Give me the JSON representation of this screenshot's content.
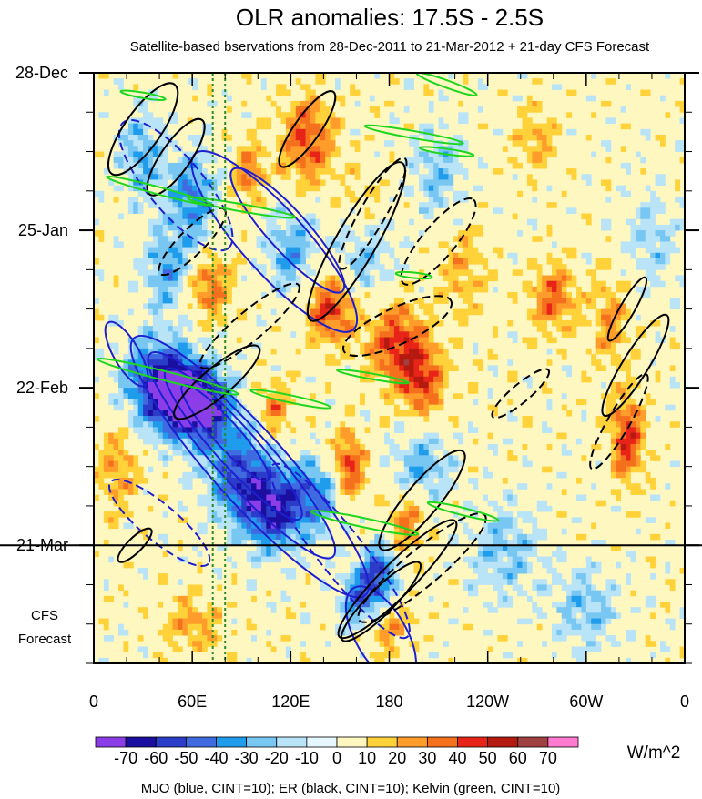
{
  "chart_data": {
    "type": "heatmap",
    "title": "OLR anomalies: 17.5S - 2.5S",
    "subtitle": "Satellite-based bservations from 28-Dec-2011 to 21-Mar-2012 + 21-day CFS Forecast",
    "x_ticks": [
      "0",
      "60E",
      "120E",
      "180",
      "120W",
      "60W",
      "0"
    ],
    "x_tick_values": [
      0,
      60,
      120,
      180,
      240,
      300,
      360
    ],
    "y_ticks": [
      "28-Dec",
      "25-Jan",
      "22-Feb",
      "21-Mar"
    ],
    "y_tick_values": [
      0,
      28,
      56,
      84
    ],
    "xlim": [
      0,
      360
    ],
    "ylim_days": [
      0,
      105
    ],
    "observation_end_day": 84,
    "forecast_label_line1": "CFS",
    "forecast_label_line2": "Forecast",
    "colorbar": {
      "levels": [
        "-70",
        "-60",
        "-50",
        "-40",
        "-30",
        "-20",
        "-10",
        "0",
        "10",
        "20",
        "30",
        "40",
        "50",
        "60",
        "70"
      ],
      "colors": [
        "#8b3ee8",
        "#1a0fa0",
        "#2a3cc8",
        "#3f6ae0",
        "#1f9cec",
        "#78c6f2",
        "#b9e3f6",
        "#e7f7ff",
        "#fff7c0",
        "#ffd23a",
        "#ff9c2a",
        "#f5701d",
        "#e82418",
        "#b51a10",
        "#a04040",
        "#ff7bd0"
      ],
      "units": "W/m^2"
    },
    "reference_lines_longitude": [
      72.5,
      80
    ],
    "footnote": "MJO (blue, CINT=10); ER (black, CINT=10); Kelvin (green, CINT=10)",
    "line_colors": {
      "MJO": "#1d1fd0",
      "ER": "#000000",
      "Kelvin": "#1fd61f",
      "reference": "#2a8a2a"
    }
  }
}
